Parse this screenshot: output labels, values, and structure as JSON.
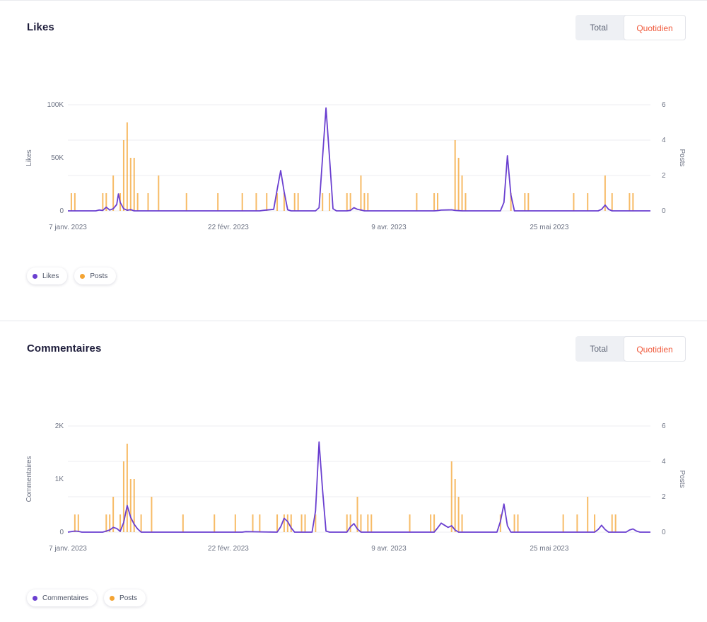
{
  "colors": {
    "likes": "#6a3fd0",
    "posts": "#f4a433",
    "active_toggle": "#f05a3c"
  },
  "toggle": {
    "total_label": "Total",
    "daily_label": "Quotidien"
  },
  "chart_data": [
    {
      "type": "line",
      "title": "Likes",
      "ylabel": "Likes",
      "y2label": "Posts",
      "ylim": [
        0,
        100000
      ],
      "y2lim": [
        0,
        6
      ],
      "yticks": [
        {
          "v": 0,
          "label": "0"
        },
        {
          "v": 50000,
          "label": "50K"
        },
        {
          "v": 100000,
          "label": "100K"
        }
      ],
      "y2ticks": [
        {
          "v": 0,
          "label": "0"
        },
        {
          "v": 2,
          "label": "2"
        },
        {
          "v": 4,
          "label": "4"
        },
        {
          "v": 6,
          "label": "6"
        }
      ],
      "x_range": [
        0,
        167
      ],
      "xticks": [
        {
          "day": 0,
          "label": "7 janv. 2023"
        },
        {
          "day": 46,
          "label": "22 févr. 2023"
        },
        {
          "day": 92,
          "label": "9 avr. 2023"
        },
        {
          "day": 138,
          "label": "25 mai 2023"
        }
      ],
      "grid": true,
      "legend_position": "bottom-left",
      "series": [
        {
          "name": "Likes",
          "axis": "left",
          "points": [
            [
              0,
              0
            ],
            [
              8,
              0
            ],
            [
              9,
              800
            ],
            [
              10,
              400
            ],
            [
              11,
              3500
            ],
            [
              12,
              800
            ],
            [
              13,
              2000
            ],
            [
              14,
              6000
            ],
            [
              14.5,
              16000
            ],
            [
              15,
              8000
            ],
            [
              16,
              2000
            ],
            [
              17,
              600
            ],
            [
              18,
              1200
            ],
            [
              19,
              0
            ],
            [
              30,
              0
            ],
            [
              39,
              0
            ],
            [
              48,
              0
            ],
            [
              53,
              0
            ],
            [
              54,
              0
            ],
            [
              55,
              0
            ],
            [
              56,
              500
            ],
            [
              59,
              1500
            ],
            [
              60,
              20000
            ],
            [
              61,
              38000
            ],
            [
              62,
              18000
            ],
            [
              63,
              1000
            ],
            [
              64,
              0
            ],
            [
              68,
              0
            ],
            [
              70,
              0
            ],
            [
              71,
              0
            ],
            [
              72,
              3000
            ],
            [
              73,
              50000
            ],
            [
              74,
              97000
            ],
            [
              75,
              50000
            ],
            [
              76,
              2000
            ],
            [
              77,
              0
            ],
            [
              80,
              0
            ],
            [
              81,
              500
            ],
            [
              82,
              3000
            ],
            [
              83,
              1500
            ],
            [
              84,
              800
            ],
            [
              85,
              0
            ],
            [
              101,
              0
            ],
            [
              105,
              0
            ],
            [
              106,
              300
            ],
            [
              107,
              700
            ],
            [
              110,
              1000
            ],
            [
              111,
              400
            ],
            [
              112,
              200
            ],
            [
              113,
              0
            ],
            [
              124,
              0
            ],
            [
              125,
              8000
            ],
            [
              126,
              52000
            ],
            [
              127,
              15000
            ],
            [
              128,
              0
            ],
            [
              152,
              0
            ],
            [
              153,
              1500
            ],
            [
              154,
              5500
            ],
            [
              155,
              1500
            ],
            [
              156,
              0
            ],
            [
              167,
              0
            ]
          ]
        },
        {
          "name": "Posts",
          "axis": "right",
          "bars": [
            [
              1,
              1
            ],
            [
              2,
              1
            ],
            [
              10,
              1
            ],
            [
              11,
              1
            ],
            [
              13,
              2
            ],
            [
              15,
              1
            ],
            [
              16,
              4
            ],
            [
              17,
              5
            ],
            [
              18,
              3
            ],
            [
              19,
              3
            ],
            [
              20,
              1
            ],
            [
              23,
              1
            ],
            [
              26,
              2
            ],
            [
              34,
              1
            ],
            [
              43,
              1
            ],
            [
              50,
              1
            ],
            [
              54,
              1
            ],
            [
              57,
              1
            ],
            [
              60,
              1
            ],
            [
              62,
              1
            ],
            [
              65,
              1
            ],
            [
              66,
              1
            ],
            [
              73,
              1
            ],
            [
              75,
              1
            ],
            [
              80,
              1
            ],
            [
              81,
              1
            ],
            [
              84,
              2
            ],
            [
              85,
              1
            ],
            [
              86,
              1
            ],
            [
              100,
              1
            ],
            [
              105,
              1
            ],
            [
              106,
              1
            ],
            [
              111,
              4
            ],
            [
              112,
              3
            ],
            [
              113,
              2
            ],
            [
              114,
              1
            ],
            [
              127,
              1
            ],
            [
              131,
              1
            ],
            [
              132,
              1
            ],
            [
              145,
              1
            ],
            [
              149,
              1
            ],
            [
              154,
              2
            ],
            [
              156,
              1
            ],
            [
              161,
              1
            ],
            [
              162,
              1
            ]
          ]
        }
      ]
    },
    {
      "type": "line",
      "title": "Commentaires",
      "ylabel": "Commentaires",
      "y2label": "Posts",
      "ylim": [
        0,
        2000
      ],
      "y2lim": [
        0,
        6
      ],
      "yticks": [
        {
          "v": 0,
          "label": "0"
        },
        {
          "v": 1000,
          "label": "1K"
        },
        {
          "v": 2000,
          "label": "2K"
        }
      ],
      "y2ticks": [
        {
          "v": 0,
          "label": "0"
        },
        {
          "v": 2,
          "label": "2"
        },
        {
          "v": 4,
          "label": "4"
        },
        {
          "v": 6,
          "label": "6"
        }
      ],
      "x_range": [
        0,
        167
      ],
      "xticks": [
        {
          "day": 0,
          "label": "7 janv. 2023"
        },
        {
          "day": 46,
          "label": "22 févr. 2023"
        },
        {
          "day": 92,
          "label": "9 avr. 2023"
        },
        {
          "day": 138,
          "label": "25 mai 2023"
        }
      ],
      "grid": true,
      "legend_position": "bottom-left",
      "series": [
        {
          "name": "Commentaires",
          "axis": "left",
          "points": [
            [
              0,
              0
            ],
            [
              2,
              20
            ],
            [
              3,
              15
            ],
            [
              4,
              0
            ],
            [
              10,
              0
            ],
            [
              11,
              20
            ],
            [
              12,
              40
            ],
            [
              13,
              90
            ],
            [
              14,
              70
            ],
            [
              15,
              15
            ],
            [
              16,
              180
            ],
            [
              17,
              500
            ],
            [
              18,
              280
            ],
            [
              19,
              150
            ],
            [
              20,
              60
            ],
            [
              21,
              0
            ],
            [
              30,
              0
            ],
            [
              43,
              0
            ],
            [
              50,
              0
            ],
            [
              51,
              10
            ],
            [
              60,
              0
            ],
            [
              61,
              100
            ],
            [
              62,
              260
            ],
            [
              63,
              200
            ],
            [
              64,
              80
            ],
            [
              65,
              0
            ],
            [
              67,
              0
            ],
            [
              68,
              0
            ],
            [
              70,
              0
            ],
            [
              71,
              400
            ],
            [
              72,
              1700
            ],
            [
              73,
              800
            ],
            [
              74,
              20
            ],
            [
              75,
              0
            ],
            [
              80,
              0
            ],
            [
              81,
              100
            ],
            [
              82,
              160
            ],
            [
              83,
              60
            ],
            [
              84,
              0
            ],
            [
              100,
              0
            ],
            [
              105,
              0
            ],
            [
              106,
              80
            ],
            [
              107,
              170
            ],
            [
              108,
              130
            ],
            [
              109,
              90
            ],
            [
              110,
              120
            ],
            [
              111,
              40
            ],
            [
              112,
              0
            ],
            [
              123,
              0
            ],
            [
              124,
              200
            ],
            [
              125,
              530
            ],
            [
              126,
              120
            ],
            [
              127,
              0
            ],
            [
              151,
              0
            ],
            [
              152,
              50
            ],
            [
              153,
              130
            ],
            [
              154,
              50
            ],
            [
              155,
              0
            ],
            [
              160,
              0
            ],
            [
              161,
              40
            ],
            [
              162,
              60
            ],
            [
              163,
              20
            ],
            [
              164,
              0
            ],
            [
              167,
              0
            ]
          ]
        },
        {
          "name": "Posts",
          "axis": "right",
          "bars": [
            [
              2,
              1
            ],
            [
              3,
              1
            ],
            [
              11,
              1
            ],
            [
              12,
              1
            ],
            [
              13,
              2
            ],
            [
              15,
              1
            ],
            [
              16,
              4
            ],
            [
              17,
              5
            ],
            [
              18,
              3
            ],
            [
              19,
              3
            ],
            [
              21,
              1
            ],
            [
              24,
              2
            ],
            [
              33,
              1
            ],
            [
              42,
              1
            ],
            [
              48,
              1
            ],
            [
              53,
              1
            ],
            [
              55,
              1
            ],
            [
              60,
              1
            ],
            [
              62,
              1
            ],
            [
              63,
              1
            ],
            [
              64,
              1
            ],
            [
              67,
              1
            ],
            [
              68,
              1
            ],
            [
              71,
              1
            ],
            [
              80,
              1
            ],
            [
              81,
              1
            ],
            [
              83,
              2
            ],
            [
              84,
              1
            ],
            [
              86,
              1
            ],
            [
              87,
              1
            ],
            [
              98,
              1
            ],
            [
              104,
              1
            ],
            [
              105,
              1
            ],
            [
              110,
              4
            ],
            [
              111,
              3
            ],
            [
              112,
              2
            ],
            [
              113,
              1
            ],
            [
              124,
              1
            ],
            [
              128,
              1
            ],
            [
              129,
              1
            ],
            [
              142,
              1
            ],
            [
              146,
              1
            ],
            [
              149,
              2
            ],
            [
              151,
              1
            ],
            [
              156,
              1
            ],
            [
              157,
              1
            ]
          ]
        }
      ]
    }
  ]
}
